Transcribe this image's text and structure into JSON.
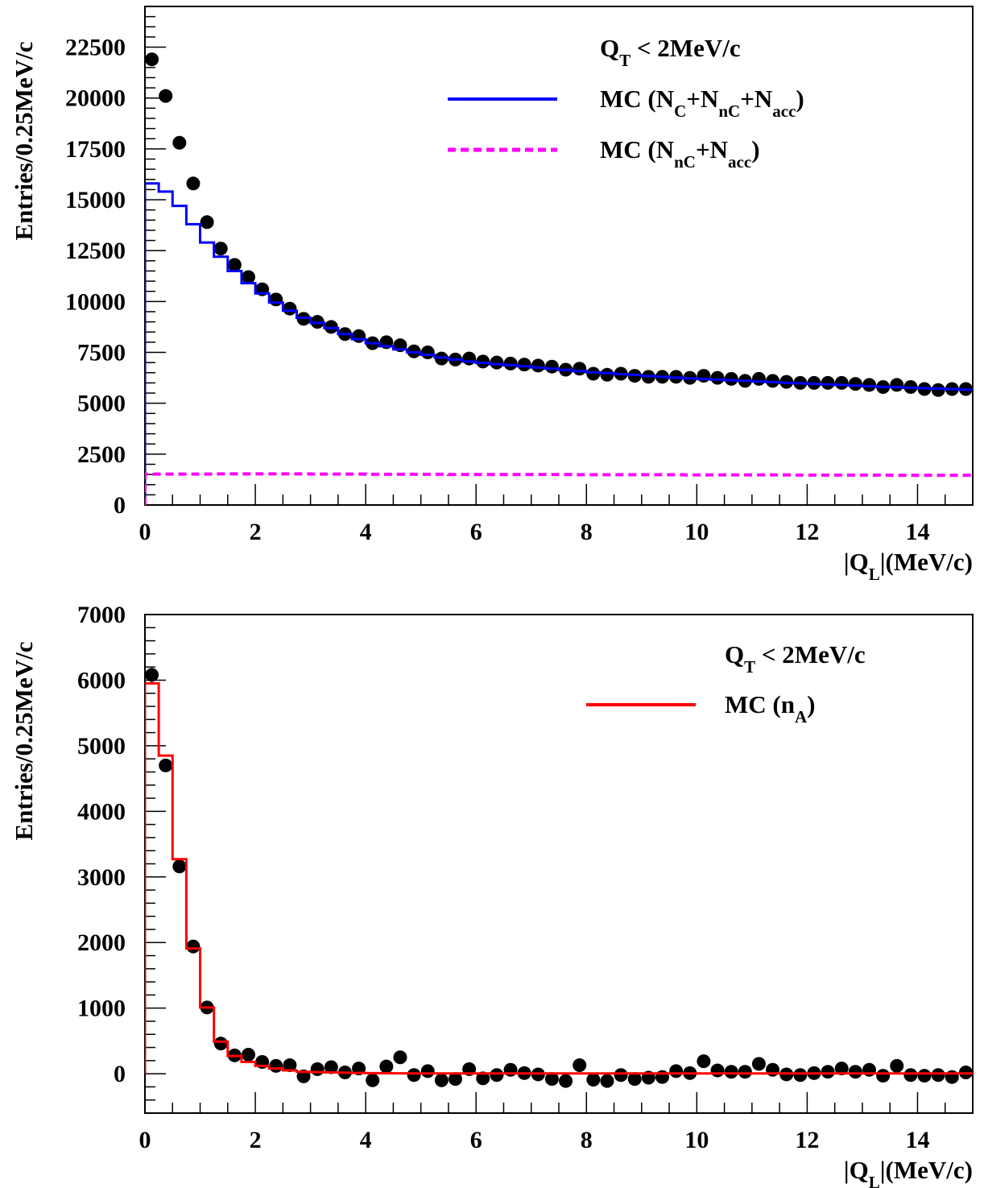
{
  "chart_data": [
    {
      "type": "scatter",
      "title": "",
      "xlabel": {
        "main": "|Q",
        "sub": "L",
        "rest": "|(MeV/c)"
      },
      "ylabel": "Entries/0.25MeV/c",
      "xlim": [
        0,
        15
      ],
      "ylim": [
        0,
        24500
      ],
      "x_ticks": [
        0,
        2,
        4,
        6,
        8,
        10,
        12,
        14
      ],
      "y_ticks": [
        0,
        2500,
        5000,
        7500,
        10000,
        12500,
        15000,
        17500,
        20000,
        22500
      ],
      "legend": {
        "placement": "top-right",
        "header": {
          "main": "Q",
          "sub": "T",
          "rest": " < 2MeV/c"
        },
        "entries": [
          {
            "style": "solid",
            "color": "#0000ff",
            "parts": [
              [
                "MC (N",
                ""
              ],
              [
                "C",
                "sub"
              ],
              [
                "+N",
                ""
              ],
              [
                "nC",
                "sub"
              ],
              [
                "+N",
                ""
              ],
              [
                "acc",
                "sub"
              ],
              [
                ")",
                ""
              ]
            ]
          },
          {
            "style": "dashed",
            "color": "#ff00ff",
            "parts": [
              [
                "MC (N",
                ""
              ],
              [
                "nC",
                "sub"
              ],
              [
                "+N",
                ""
              ],
              [
                "acc",
                "sub"
              ],
              [
                ")",
                ""
              ]
            ]
          }
        ]
      },
      "series": [
        {
          "kind": "points",
          "color": "#000000",
          "x": [
            0.125,
            0.375,
            0.625,
            0.875,
            1.125,
            1.375,
            1.625,
            1.875,
            2.125,
            2.375,
            2.625,
            2.875,
            3.125,
            3.375,
            3.625,
            3.875,
            4.125,
            4.375,
            4.625,
            4.875,
            5.125,
            5.375,
            5.625,
            5.875,
            6.125,
            6.375,
            6.625,
            6.875,
            7.125,
            7.375,
            7.625,
            7.875,
            8.125,
            8.375,
            8.625,
            8.875,
            9.125,
            9.375,
            9.625,
            9.875,
            10.125,
            10.375,
            10.625,
            10.875,
            11.125,
            11.375,
            11.625,
            11.875,
            12.125,
            12.375,
            12.625,
            12.875,
            13.125,
            13.375,
            13.625,
            13.875,
            14.125,
            14.375,
            14.625,
            14.875
          ],
          "y": [
            21900,
            20100,
            17800,
            15800,
            13900,
            12600,
            11800,
            11200,
            10600,
            10100,
            9650,
            9150,
            9000,
            8750,
            8400,
            8300,
            7950,
            8000,
            7850,
            7550,
            7500,
            7200,
            7150,
            7200,
            7050,
            7000,
            6950,
            6900,
            6850,
            6800,
            6650,
            6700,
            6450,
            6400,
            6450,
            6350,
            6300,
            6300,
            6300,
            6250,
            6350,
            6250,
            6200,
            6100,
            6200,
            6100,
            6050,
            6000,
            6000,
            6000,
            6000,
            5950,
            5900,
            5800,
            5900,
            5800,
            5700,
            5650,
            5700,
            5700
          ],
          "yerr": []
        },
        {
          "kind": "step",
          "color": "#0000ff",
          "style": "solid",
          "bin_width": 0.25,
          "x_start": 0,
          "values": [
            15800,
            15400,
            14700,
            13800,
            12900,
            12200,
            11500,
            10900,
            10400,
            9950,
            9550,
            9200,
            8950,
            8700,
            8400,
            8150,
            7950,
            7800,
            7650,
            7500,
            7380,
            7250,
            7150,
            7050,
            6980,
            6920,
            6870,
            6820,
            6760,
            6700,
            6640,
            6580,
            6520,
            6480,
            6430,
            6390,
            6340,
            6300,
            6260,
            6220,
            6190,
            6160,
            6130,
            6100,
            6070,
            6040,
            6000,
            5980,
            5950,
            5920,
            5900,
            5870,
            5840,
            5810,
            5790,
            5760,
            5740,
            5720,
            5690,
            5670
          ]
        },
        {
          "kind": "step",
          "color": "#ff00ff",
          "style": "dashed",
          "bin_width": 0.25,
          "x_start": 0,
          "values": [
            1520,
            1520,
            1520,
            1520,
            1520,
            1530,
            1530,
            1530,
            1530,
            1530,
            1530,
            1530,
            1520,
            1520,
            1520,
            1520,
            1510,
            1510,
            1510,
            1510,
            1510,
            1510,
            1500,
            1500,
            1500,
            1500,
            1500,
            1500,
            1500,
            1500,
            1500,
            1490,
            1490,
            1490,
            1490,
            1490,
            1490,
            1490,
            1490,
            1480,
            1480,
            1480,
            1480,
            1480,
            1480,
            1480,
            1480,
            1470,
            1470,
            1470,
            1470,
            1470,
            1470,
            1470,
            1460,
            1460,
            1460,
            1460,
            1460,
            1460
          ]
        }
      ]
    },
    {
      "type": "scatter",
      "title": "",
      "xlabel": {
        "main": "|Q",
        "sub": "L",
        "rest": "|(MeV/c)"
      },
      "ylabel": "Entries/0.25MeV/c",
      "xlim": [
        0,
        15
      ],
      "ylim": [
        -600,
        7000
      ],
      "x_ticks": [
        0,
        2,
        4,
        6,
        8,
        10,
        12,
        14
      ],
      "y_ticks": [
        0,
        1000,
        2000,
        3000,
        4000,
        5000,
        6000,
        7000
      ],
      "legend": {
        "placement": "top-right",
        "header": {
          "main": "Q",
          "sub": "T",
          "rest": " < 2MeV/c"
        },
        "entries": [
          {
            "style": "solid",
            "color": "#ff0000",
            "parts": [
              [
                "MC (n",
                ""
              ],
              [
                "A",
                "sub"
              ],
              [
                ")",
                ""
              ]
            ]
          }
        ]
      },
      "series": [
        {
          "kind": "points",
          "color": "#000000",
          "x": [
            0.125,
            0.375,
            0.625,
            0.875,
            1.125,
            1.375,
            1.625,
            1.875,
            2.125,
            2.375,
            2.625,
            2.875,
            3.125,
            3.375,
            3.625,
            3.875,
            4.125,
            4.375,
            4.625,
            4.875,
            5.125,
            5.375,
            5.625,
            5.875,
            6.125,
            6.375,
            6.625,
            6.875,
            7.125,
            7.375,
            7.625,
            7.875,
            8.125,
            8.375,
            8.625,
            8.875,
            9.125,
            9.375,
            9.625,
            9.875,
            10.125,
            10.375,
            10.625,
            10.875,
            11.125,
            11.375,
            11.625,
            11.875,
            12.125,
            12.375,
            12.625,
            12.875,
            13.125,
            13.375,
            13.625,
            13.875,
            14.125,
            14.375,
            14.625,
            14.875
          ],
          "y": [
            6080,
            4700,
            3160,
            1940,
            1010,
            460,
            280,
            290,
            180,
            120,
            130,
            -40,
            70,
            100,
            20,
            80,
            -100,
            110,
            250,
            -20,
            40,
            -100,
            -80,
            70,
            -70,
            -20,
            60,
            10,
            -10,
            -80,
            -110,
            130,
            -90,
            -110,
            -20,
            -80,
            -60,
            -50,
            40,
            10,
            190,
            50,
            30,
            30,
            150,
            60,
            -10,
            -20,
            10,
            30,
            80,
            30,
            60,
            -30,
            120,
            -20,
            -30,
            -20,
            -50,
            20
          ],
          "yerr": [
            110,
            95,
            85,
            75,
            70,
            65,
            65,
            65,
            65,
            65,
            65,
            65,
            65,
            65,
            65,
            65,
            65,
            65,
            65,
            65,
            65,
            65,
            65,
            65,
            65,
            65,
            65,
            65,
            65,
            65,
            65,
            65,
            65,
            65,
            65,
            65,
            65,
            65,
            65,
            65,
            65,
            65,
            65,
            65,
            65,
            65,
            65,
            65,
            65,
            65,
            65,
            65,
            65,
            65,
            65,
            65,
            65,
            65,
            65,
            65
          ]
        },
        {
          "kind": "step",
          "color": "#ff0000",
          "style": "solid",
          "bin_width": 0.25,
          "x_start": 0,
          "values": [
            5950,
            4850,
            3270,
            1910,
            1010,
            490,
            270,
            180,
            120,
            80,
            50,
            30,
            25,
            20,
            15,
            12,
            10,
            8,
            6,
            5,
            5,
            5,
            5,
            5,
            5,
            5,
            5,
            5,
            5,
            5,
            5,
            5,
            5,
            5,
            5,
            5,
            5,
            5,
            5,
            5,
            5,
            5,
            5,
            5,
            5,
            5,
            5,
            5,
            5,
            5,
            5,
            5,
            5,
            5,
            5,
            5,
            5,
            5,
            5,
            5
          ]
        }
      ]
    }
  ]
}
